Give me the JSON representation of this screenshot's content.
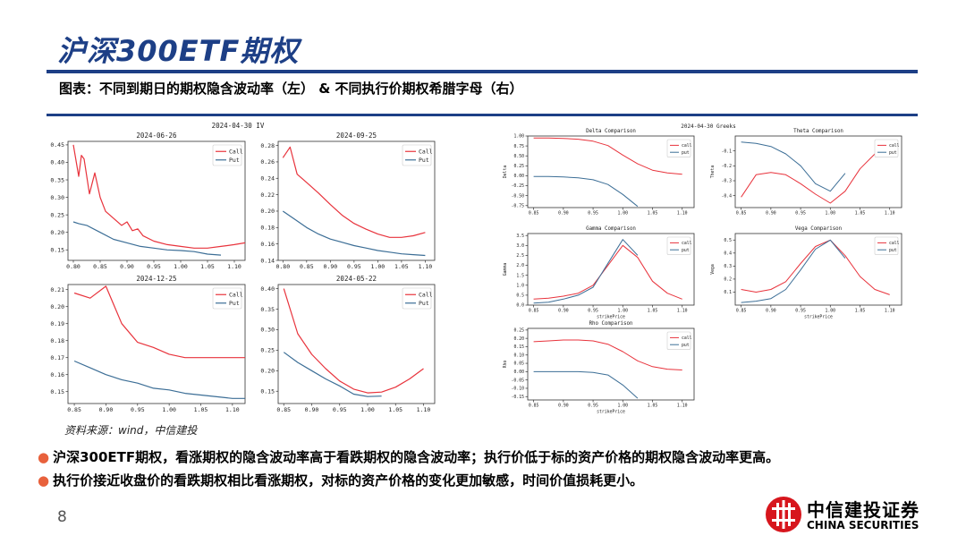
{
  "slide": {
    "title": "沪深300ETF期权",
    "caption": "图表：不同到期日的期权隐含波动率（左） & 不同执行价期权希腊字母（右）",
    "source": "资料来源：wind，中信建投",
    "bullets": [
      "沪深300ETF期权，看涨期权的隐含波动率高于看跌期权的隐含波动率；执行价低于标的资产价格的期权隐含波动率更高。",
      "执行价接近收盘价的看跌期权相比看涨期权，对标的资产价格的变化更加敏感，时间价值损耗更小。"
    ],
    "page_number": "8",
    "logo": {
      "cn": "中信建投证券",
      "en": "CHINA SECURITIES"
    }
  },
  "colors": {
    "brand": "#1d3f86",
    "call": "#e8333c",
    "put": "#3c6e96",
    "bullet": "#e8613c"
  },
  "chart_data": [
    {
      "group": "IV",
      "suptitle": "2024-04-30 IV",
      "type": "line",
      "title": "2024-06-26",
      "xlim": [
        0.79,
        1.12
      ],
      "ylim": [
        0.12,
        0.46
      ],
      "xticks": [
        0.8,
        0.85,
        0.9,
        0.95,
        1.0,
        1.05,
        1.1
      ],
      "xtick_labels": [
        "0.80",
        "0.85",
        "0.90",
        "0.95",
        "1.00",
        "1.05",
        "1.10"
      ],
      "yticks": [
        0.15,
        0.2,
        0.25,
        0.3,
        0.35,
        0.4,
        0.45
      ],
      "ytick_labels": [
        "0.15",
        "0.20",
        "0.25",
        "0.30",
        "0.35",
        "0.40",
        "0.45"
      ],
      "legend": "top-right",
      "series": [
        {
          "name": "Call",
          "x": [
            0.8,
            0.81,
            0.815,
            0.82,
            0.83,
            0.84,
            0.85,
            0.86,
            0.875,
            0.89,
            0.9,
            0.91,
            0.92,
            0.93,
            0.95,
            0.975,
            1.0,
            1.025,
            1.05,
            1.075,
            1.1,
            1.12
          ],
          "values": [
            0.45,
            0.36,
            0.42,
            0.41,
            0.31,
            0.37,
            0.3,
            0.26,
            0.24,
            0.22,
            0.23,
            0.205,
            0.21,
            0.19,
            0.175,
            0.165,
            0.16,
            0.155,
            0.155,
            0.16,
            0.165,
            0.17
          ]
        },
        {
          "name": "Put",
          "x": [
            0.8,
            0.81,
            0.825,
            0.85,
            0.875,
            0.9,
            0.925,
            0.95,
            0.975,
            1.0,
            1.025,
            1.05,
            1.075
          ],
          "values": [
            0.23,
            0.225,
            0.22,
            0.2,
            0.18,
            0.17,
            0.16,
            0.155,
            0.15,
            0.148,
            0.145,
            0.138,
            0.135
          ]
        }
      ]
    },
    {
      "group": "IV",
      "type": "line",
      "title": "2024-09-25",
      "xlim": [
        0.79,
        1.12
      ],
      "ylim": [
        0.14,
        0.285
      ],
      "xticks": [
        0.8,
        0.85,
        0.9,
        0.95,
        1.0,
        1.05,
        1.1
      ],
      "xtick_labels": [
        "0.80",
        "0.85",
        "0.90",
        "0.95",
        "1.00",
        "1.05",
        "1.10"
      ],
      "yticks": [
        0.14,
        0.16,
        0.18,
        0.2,
        0.22,
        0.24,
        0.26,
        0.28
      ],
      "ytick_labels": [
        "0.14",
        "0.16",
        "0.18",
        "0.20",
        "0.22",
        "0.24",
        "0.26",
        "0.28"
      ],
      "legend": "top-right",
      "series": [
        {
          "name": "Call",
          "x": [
            0.8,
            0.815,
            0.83,
            0.85,
            0.875,
            0.9,
            0.925,
            0.95,
            0.975,
            1.0,
            1.025,
            1.05,
            1.075,
            1.1
          ],
          "values": [
            0.265,
            0.278,
            0.245,
            0.235,
            0.222,
            0.208,
            0.195,
            0.185,
            0.178,
            0.172,
            0.168,
            0.168,
            0.17,
            0.174
          ]
        },
        {
          "name": "Put",
          "x": [
            0.8,
            0.825,
            0.85,
            0.875,
            0.9,
            0.925,
            0.95,
            0.975,
            1.0,
            1.025,
            1.05,
            1.075,
            1.1
          ],
          "values": [
            0.2,
            0.19,
            0.18,
            0.172,
            0.166,
            0.162,
            0.158,
            0.155,
            0.152,
            0.15,
            0.148,
            0.147,
            0.146
          ]
        }
      ]
    },
    {
      "group": "IV",
      "type": "line",
      "title": "2024-12-25",
      "xlim": [
        0.84,
        1.12
      ],
      "ylim": [
        0.143,
        0.213
      ],
      "xticks": [
        0.85,
        0.9,
        0.95,
        1.0,
        1.05,
        1.1
      ],
      "xtick_labels": [
        "0.85",
        "0.90",
        "0.95",
        "1.00",
        "1.05",
        "1.10"
      ],
      "yticks": [
        0.15,
        0.16,
        0.17,
        0.18,
        0.19,
        0.2,
        0.21
      ],
      "ytick_labels": [
        "0.15",
        "0.16",
        "0.17",
        "0.18",
        "0.19",
        "0.20",
        "0.21"
      ],
      "legend": "top-right",
      "series": [
        {
          "name": "Call",
          "x": [
            0.85,
            0.875,
            0.9,
            0.925,
            0.95,
            0.975,
            1.0,
            1.025,
            1.05,
            1.075,
            1.1,
            1.12
          ],
          "values": [
            0.208,
            0.205,
            0.212,
            0.19,
            0.179,
            0.176,
            0.172,
            0.17,
            0.17,
            0.17,
            0.17,
            0.17
          ]
        },
        {
          "name": "Put",
          "x": [
            0.85,
            0.875,
            0.9,
            0.925,
            0.95,
            0.975,
            1.0,
            1.025,
            1.05,
            1.075,
            1.1,
            1.12
          ],
          "values": [
            0.168,
            0.164,
            0.16,
            0.157,
            0.155,
            0.152,
            0.151,
            0.149,
            0.148,
            0.147,
            0.146,
            0.146
          ]
        }
      ]
    },
    {
      "group": "IV",
      "type": "line",
      "title": "2024-05-22",
      "xlim": [
        0.84,
        1.12
      ],
      "ylim": [
        0.12,
        0.41
      ],
      "xticks": [
        0.85,
        0.9,
        0.95,
        1.0,
        1.05,
        1.1
      ],
      "xtick_labels": [
        "0.85",
        "0.90",
        "0.95",
        "1.00",
        "1.05",
        "1.10"
      ],
      "yticks": [
        0.15,
        0.2,
        0.25,
        0.3,
        0.35,
        0.4
      ],
      "ytick_labels": [
        "0.15",
        "0.20",
        "0.25",
        "0.30",
        "0.35",
        "0.40"
      ],
      "legend": "top-right",
      "series": [
        {
          "name": "Call",
          "x": [
            0.85,
            0.875,
            0.9,
            0.925,
            0.95,
            0.975,
            1.0,
            1.025,
            1.05,
            1.075,
            1.1
          ],
          "values": [
            0.4,
            0.29,
            0.24,
            0.205,
            0.175,
            0.155,
            0.146,
            0.148,
            0.16,
            0.18,
            0.205
          ]
        },
        {
          "name": "Put",
          "x": [
            0.85,
            0.875,
            0.9,
            0.925,
            0.95,
            0.975,
            1.0,
            1.025
          ],
          "values": [
            0.245,
            0.22,
            0.2,
            0.18,
            0.163,
            0.143,
            0.137,
            0.138
          ]
        }
      ]
    },
    {
      "group": "Greeks",
      "suptitle": "2024-04-30 Greeks",
      "type": "line",
      "title": "Delta Comparison",
      "xlabel": "",
      "ylabel": "Delta",
      "xlim": [
        0.84,
        1.12
      ],
      "ylim": [
        -0.8,
        1.0
      ],
      "xticks": [
        0.85,
        0.9,
        0.95,
        1.0,
        1.05,
        1.1
      ],
      "xtick_labels": [
        "0.85",
        "0.90",
        "0.95",
        "1.00",
        "1.05",
        "1.10"
      ],
      "yticks": [
        -0.75,
        -0.5,
        -0.25,
        0.0,
        0.25,
        0.5,
        0.75,
        1.0
      ],
      "ytick_labels": [
        "-0.75",
        "-0.50",
        "-0.25",
        "0.00",
        "0.25",
        "0.50",
        "0.75",
        "1.00"
      ],
      "legend": "top-right",
      "series": [
        {
          "name": "call",
          "x": [
            0.85,
            0.875,
            0.9,
            0.925,
            0.95,
            0.975,
            1.0,
            1.025,
            1.05,
            1.075,
            1.1
          ],
          "values": [
            0.95,
            0.95,
            0.94,
            0.92,
            0.87,
            0.76,
            0.52,
            0.3,
            0.14,
            0.07,
            0.04
          ]
        },
        {
          "name": "put",
          "x": [
            0.85,
            0.875,
            0.9,
            0.925,
            0.95,
            0.975,
            1.0,
            1.025
          ],
          "values": [
            -0.02,
            -0.02,
            -0.03,
            -0.05,
            -0.1,
            -0.22,
            -0.47,
            -0.77
          ]
        }
      ]
    },
    {
      "group": "Greeks",
      "type": "line",
      "title": "Theta Comparison",
      "xlabel": "",
      "ylabel": "Theta",
      "xlim": [
        0.84,
        1.12
      ],
      "ylim": [
        -0.48,
        0.0
      ],
      "xticks": [
        0.85,
        0.9,
        0.95,
        1.0,
        1.05,
        1.1
      ],
      "xtick_labels": [
        "0.85",
        "0.90",
        "0.95",
        "1.00",
        "1.05",
        "1.10"
      ],
      "yticks": [
        -0.4,
        -0.3,
        -0.2,
        -0.1
      ],
      "ytick_labels": [
        "-0.4",
        "-0.3",
        "-0.2",
        "-0.1"
      ],
      "legend": "top-right",
      "series": [
        {
          "name": "call",
          "x": [
            0.85,
            0.875,
            0.9,
            0.925,
            0.95,
            0.975,
            1.0,
            1.025,
            1.05,
            1.075,
            1.1
          ],
          "values": [
            -0.41,
            -0.26,
            -0.245,
            -0.26,
            -0.32,
            -0.39,
            -0.45,
            -0.37,
            -0.22,
            -0.12,
            -0.06
          ]
        },
        {
          "name": "put",
          "x": [
            0.85,
            0.875,
            0.9,
            0.925,
            0.95,
            0.975,
            1.0,
            1.025
          ],
          "values": [
            -0.04,
            -0.05,
            -0.07,
            -0.12,
            -0.2,
            -0.32,
            -0.37,
            -0.25
          ]
        }
      ]
    },
    {
      "group": "Greeks",
      "type": "line",
      "title": "Gamma Comparison",
      "xlabel": "strikePrice",
      "ylabel": "Gamma",
      "xlim": [
        0.84,
        1.12
      ],
      "ylim": [
        0.0,
        3.6
      ],
      "xticks": [
        0.85,
        0.9,
        0.95,
        1.0,
        1.05,
        1.1
      ],
      "xtick_labels": [
        "0.85",
        "0.90",
        "0.95",
        "1.00",
        "1.05",
        "1.10"
      ],
      "yticks": [
        0.0,
        0.5,
        1.0,
        1.5,
        2.0,
        2.5,
        3.0,
        3.5
      ],
      "ytick_labels": [
        "0.0",
        "0.5",
        "1.0",
        "1.5",
        "2.0",
        "2.5",
        "3.0",
        "3.5"
      ],
      "legend": "top-right",
      "series": [
        {
          "name": "call",
          "x": [
            0.85,
            0.875,
            0.9,
            0.925,
            0.95,
            0.975,
            1.0,
            1.025,
            1.05,
            1.075,
            1.1
          ],
          "values": [
            0.3,
            0.35,
            0.45,
            0.6,
            1.0,
            2.0,
            3.0,
            2.4,
            1.2,
            0.6,
            0.3
          ]
        },
        {
          "name": "put",
          "x": [
            0.85,
            0.875,
            0.9,
            0.925,
            0.95,
            0.975,
            1.0,
            1.025
          ],
          "values": [
            0.1,
            0.15,
            0.3,
            0.5,
            0.9,
            2.1,
            3.3,
            2.5
          ]
        }
      ]
    },
    {
      "group": "Greeks",
      "type": "line",
      "title": "Vega Comparison",
      "xlabel": "strikePrice",
      "ylabel": "Vega",
      "xlim": [
        0.84,
        1.12
      ],
      "ylim": [
        0.0,
        0.55
      ],
      "xticks": [
        0.85,
        0.9,
        0.95,
        1.0,
        1.05,
        1.1
      ],
      "xtick_labels": [
        "0.85",
        "0.90",
        "0.95",
        "1.00",
        "1.05",
        "1.10"
      ],
      "yticks": [
        0.1,
        0.2,
        0.3,
        0.4,
        0.5
      ],
      "ytick_labels": [
        "0.1",
        "0.2",
        "0.3",
        "0.4",
        "0.5"
      ],
      "legend": "top-right",
      "series": [
        {
          "name": "call",
          "x": [
            0.85,
            0.875,
            0.9,
            0.925,
            0.95,
            0.975,
            1.0,
            1.025,
            1.05,
            1.075,
            1.1
          ],
          "values": [
            0.12,
            0.1,
            0.12,
            0.18,
            0.32,
            0.45,
            0.5,
            0.38,
            0.22,
            0.12,
            0.08
          ]
        },
        {
          "name": "put",
          "x": [
            0.85,
            0.875,
            0.9,
            0.925,
            0.95,
            0.975,
            1.0,
            1.025
          ],
          "values": [
            0.02,
            0.03,
            0.05,
            0.12,
            0.27,
            0.43,
            0.5,
            0.36
          ]
        }
      ]
    },
    {
      "group": "Greeks",
      "type": "line",
      "title": "Rho Comparison",
      "xlabel": "strikePrice",
      "ylabel": "Rho",
      "xlim": [
        0.84,
        1.12
      ],
      "ylim": [
        -0.17,
        0.26
      ],
      "xticks": [
        0.85,
        0.9,
        0.95,
        1.0,
        1.05,
        1.1
      ],
      "xtick_labels": [
        "0.85",
        "0.90",
        "0.95",
        "1.00",
        "1.05",
        "1.10"
      ],
      "yticks": [
        -0.15,
        -0.1,
        -0.05,
        0.0,
        0.05,
        0.1,
        0.15,
        0.2,
        0.25
      ],
      "ytick_labels": [
        "-0.15",
        "-0.10",
        "-0.05",
        "0.00",
        "0.05",
        "0.10",
        "0.15",
        "0.20",
        "0.25"
      ],
      "legend": "top-right",
      "series": [
        {
          "name": "call",
          "x": [
            0.85,
            0.875,
            0.9,
            0.925,
            0.95,
            0.975,
            1.0,
            1.025,
            1.05,
            1.075,
            1.1
          ],
          "values": [
            0.18,
            0.185,
            0.19,
            0.19,
            0.185,
            0.165,
            0.12,
            0.065,
            0.03,
            0.015,
            0.01
          ]
        },
        {
          "name": "put",
          "x": [
            0.85,
            0.875,
            0.9,
            0.925,
            0.95,
            0.975,
            1.0,
            1.025
          ],
          "values": [
            0.0,
            0.0,
            0.0,
            0.0,
            -0.005,
            -0.02,
            -0.08,
            -0.16
          ]
        }
      ]
    }
  ]
}
